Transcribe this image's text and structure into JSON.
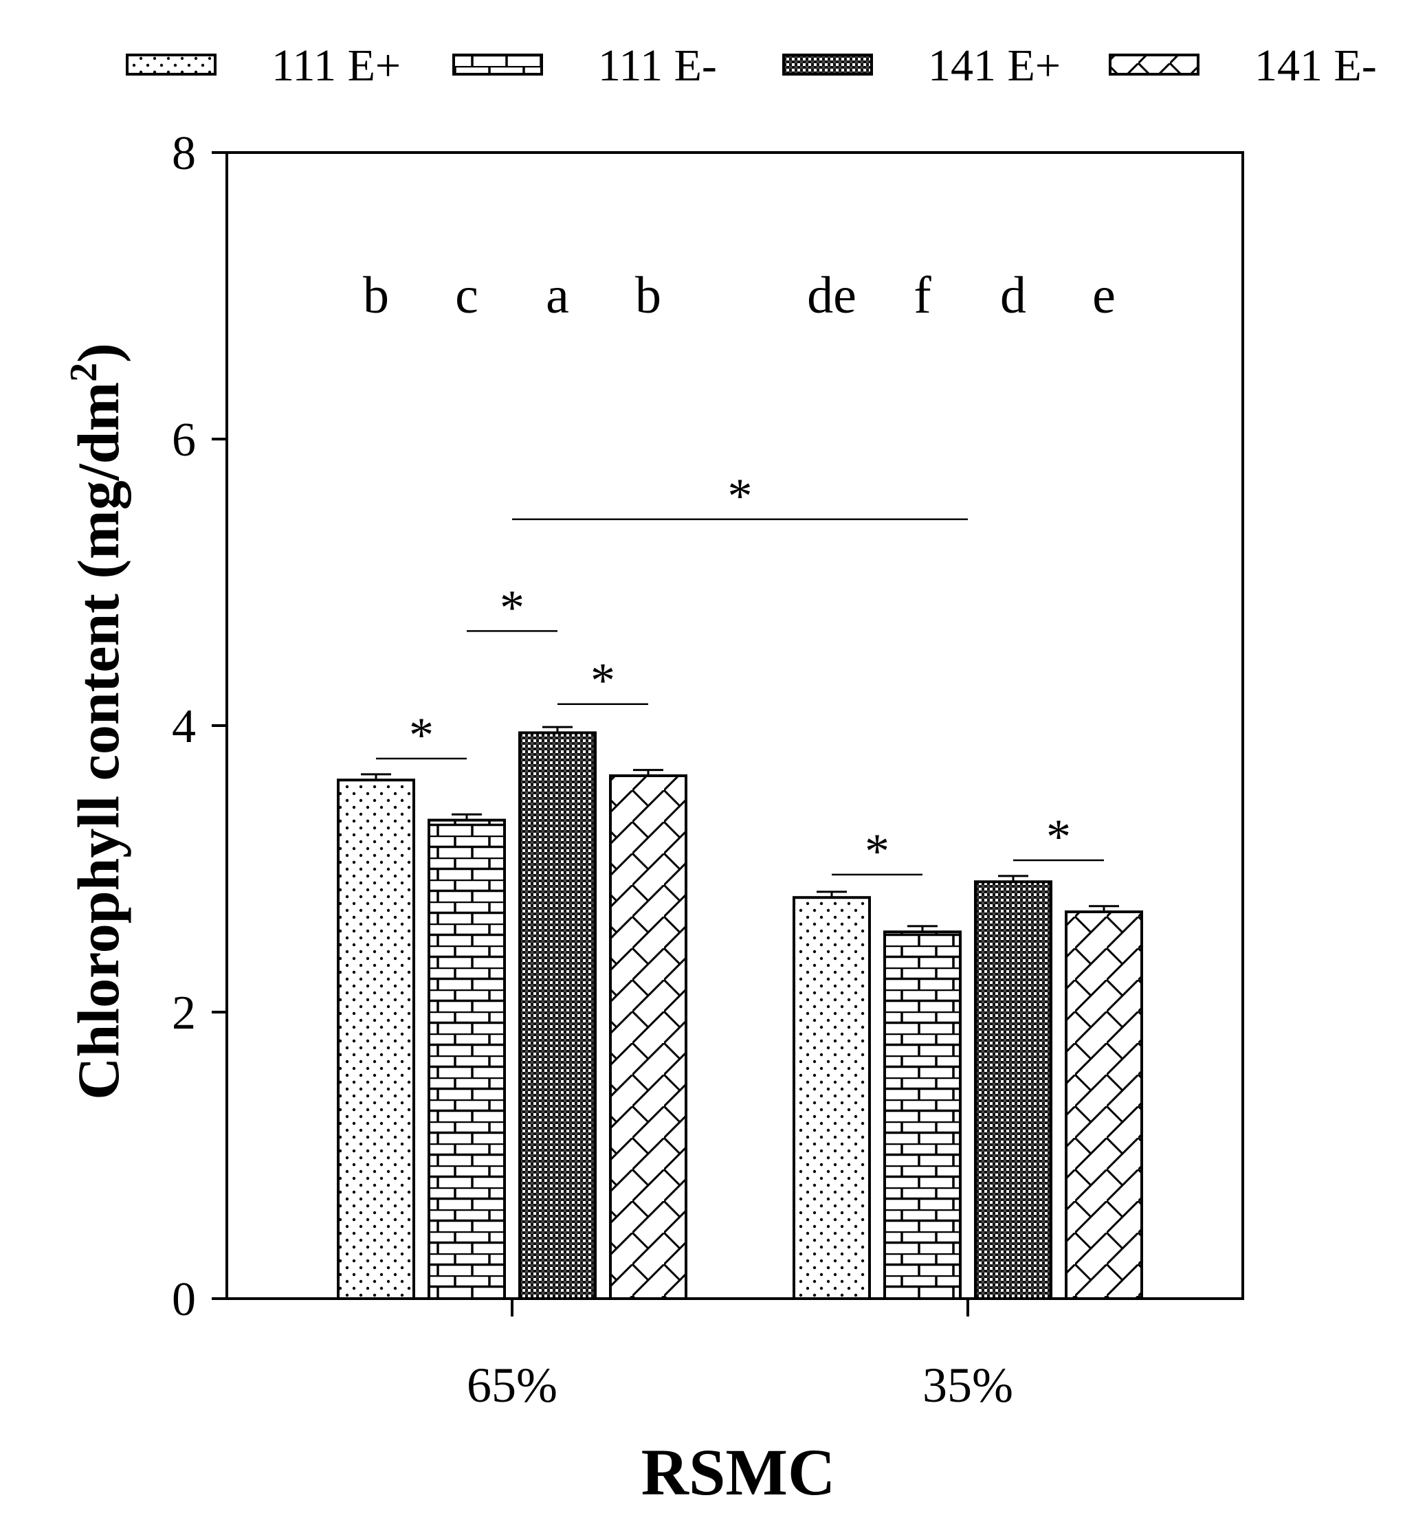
{
  "chart_data": {
    "type": "bar",
    "title": "",
    "xlabel": "RSMC",
    "ylabel": "Chlorophyll content (mg/dm",
    "ylabel_superscript": "2",
    "ylabel_suffix": ")",
    "ylim": [
      0,
      8
    ],
    "yticks": [
      "0",
      "2",
      "4",
      "6",
      "8"
    ],
    "categories": [
      "65%",
      "35%"
    ],
    "legend_position": "top",
    "series": [
      {
        "name": "111 E+",
        "pattern": "dots",
        "values": [
          3.62,
          2.8
        ],
        "errors": [
          0.04,
          0.04
        ],
        "letters": [
          "b",
          "de"
        ]
      },
      {
        "name": "111 E-",
        "pattern": "brick",
        "values": [
          3.34,
          2.56
        ],
        "errors": [
          0.04,
          0.04
        ],
        "letters": [
          "c",
          "f"
        ]
      },
      {
        "name": "141 E+",
        "pattern": "dense-checker",
        "values": [
          3.95,
          2.91
        ],
        "errors": [
          0.04,
          0.04
        ],
        "letters": [
          "a",
          "d"
        ]
      },
      {
        "name": "141 E-",
        "pattern": "diagonal-lattice",
        "values": [
          3.65,
          2.7
        ],
        "errors": [
          0.04,
          0.04
        ],
        "letters": [
          "b",
          "e"
        ]
      }
    ],
    "significance": [
      {
        "group": 0,
        "from": 0,
        "to": 1,
        "y": 3.77,
        "label": "*"
      },
      {
        "group": 0,
        "from": 1,
        "to": 2,
        "y": 4.66,
        "label": "*"
      },
      {
        "group": 0,
        "from": 2,
        "to": 3,
        "y": 4.15,
        "label": "*"
      },
      {
        "group": 1,
        "from": 0,
        "to": 1,
        "y": 2.96,
        "label": "*"
      },
      {
        "group": 1,
        "from": 2,
        "to": 3,
        "y": 3.06,
        "label": "*"
      },
      {
        "between_groups": true,
        "y": 5.44,
        "label": "*"
      }
    ],
    "colors": {
      "bar_stroke": "#000000",
      "background": "#ffffff"
    }
  }
}
